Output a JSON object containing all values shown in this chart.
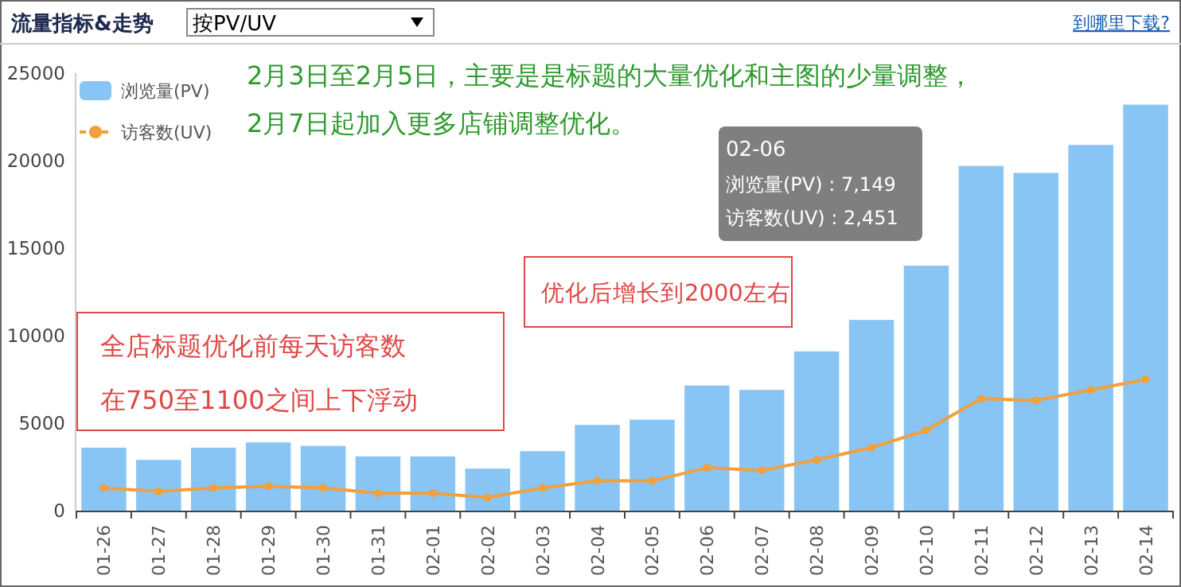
{
  "chart_data": {
    "type": "bar",
    "title": "流量指标&走势",
    "subtitle": "按PV/UV",
    "categories": [
      "01-26",
      "01-27",
      "01-28",
      "01-29",
      "01-30",
      "01-31",
      "02-01",
      "02-02",
      "02-03",
      "02-04",
      "02-05",
      "02-06",
      "02-07",
      "02-08",
      "02-09",
      "02-10",
      "02-11",
      "02-12",
      "02-13",
      "02-14"
    ],
    "series": [
      {
        "name": "浏览量(PV)",
        "color": "#88c5f5",
        "values": [
          3600,
          2900,
          3600,
          3900,
          3700,
          3100,
          3100,
          2400,
          3400,
          4900,
          5200,
          7149,
          6900,
          9100,
          10900,
          14000,
          19700,
          19300,
          20900,
          23200
        ]
      },
      {
        "name": "访客数(UV)",
        "type": "line",
        "color": "#f0a03c",
        "marker": "circle",
        "values": [
          1300,
          1100,
          1300,
          1400,
          1300,
          1000,
          1000,
          750,
          1300,
          1700,
          1700,
          2451,
          2300,
          2900,
          3600,
          4600,
          6400,
          6300,
          6900,
          7500
        ]
      }
    ],
    "ylim": [
      0,
      25000
    ],
    "yticks": [
      0,
      5000,
      10000,
      15000,
      20000,
      25000
    ],
    "legend": "top left",
    "annotations": [
      "到哪里下载?",
      "2月3日至2月5日，主要是是标题的大量优化和主图的少量调整，",
      "2月7日起加入更多店铺调整优化。",
      "全店标题优化前每天访客数",
      "在750至1100之间上下浮动",
      "优化后增长到2000左右",
      "02-06",
      "浏览量(PV) : 7,149",
      "访客数(UV) : 2,451"
    ]
  }
}
